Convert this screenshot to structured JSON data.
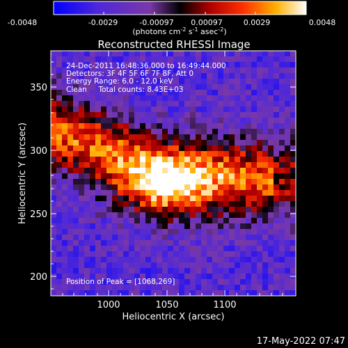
{
  "colorbar": {
    "tick_labels": [
      "-0.0048",
      "-0.0029",
      "-0.00097",
      "0.00097",
      "0.0029",
      "0.0048"
    ],
    "unit_label_parts": [
      "(photons cm",
      "-2",
      " s",
      "-1",
      " asec",
      "-2",
      ")"
    ]
  },
  "title": "Reconstructed RHESSI Image",
  "annotations": {
    "line1": "24-Dec-2011 16:48:36.000 to 16:49:44.000",
    "line2": "Detectors: 3F 4F 5F 6F 7F 8F, Att 0",
    "line3": "Energy Range: 6.0 - 12.0 keV",
    "line4": "Clean     Total counts: 8.43E+03",
    "peak": "Position of Peak = [1068,269]"
  },
  "axes": {
    "xlabel": "Heliocentric X (arcsec)",
    "ylabel": "Heliocentric Y (arcsec)",
    "xticks": [
      "1000",
      "1050",
      "1100"
    ],
    "yticks": [
      "200",
      "250",
      "300",
      "350"
    ],
    "xrange": [
      958,
      1198
    ],
    "yrange": [
      187,
      372
    ]
  },
  "image_stats": {
    "peak_x": 1068,
    "peak_y": 269
  },
  "timestamp": "17-May-2022 07:47",
  "colors": {
    "background": "#000000",
    "colormap": [
      "#0000ff",
      "#5a30c8",
      "#7a38a8",
      "#000000",
      "#c00000",
      "#ff6000",
      "#ffc000",
      "#ffff80",
      "#ffffff"
    ]
  }
}
